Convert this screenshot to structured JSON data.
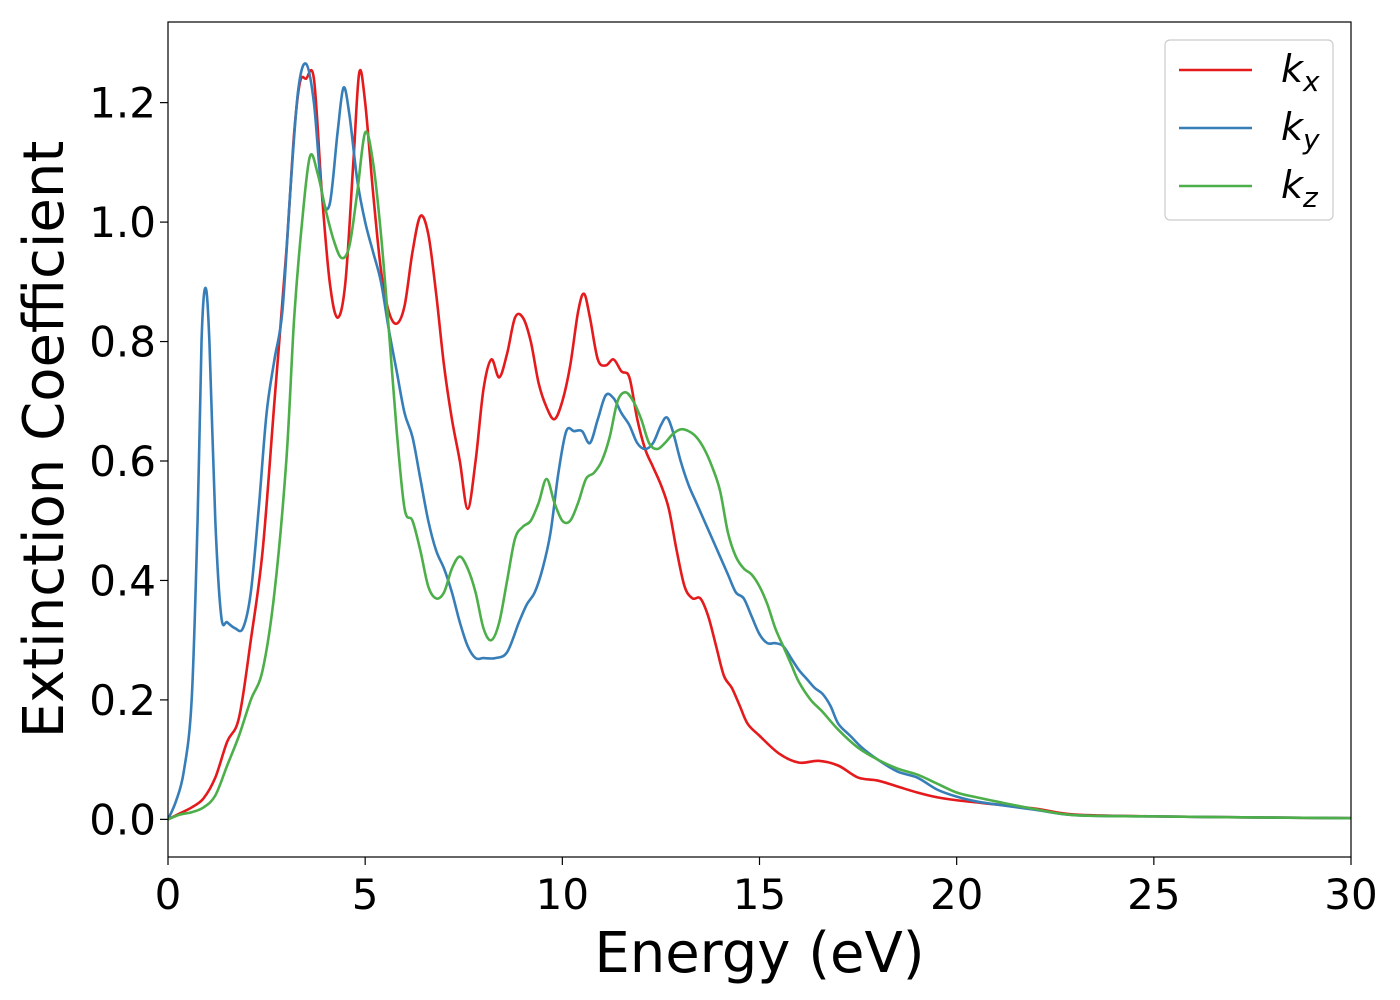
{
  "chart_data": {
    "type": "line",
    "xlabel": "Energy (eV)",
    "ylabel": "Extinction Coefficient",
    "xlim": [
      0,
      30
    ],
    "ylim": [
      -0.063,
      1.335
    ],
    "xticks": [
      0,
      5,
      10,
      15,
      20,
      25,
      30
    ],
    "xtick_labels": [
      "0",
      "5",
      "10",
      "15",
      "20",
      "25",
      "30"
    ],
    "yticks": [
      0.0,
      0.2,
      0.4,
      0.6,
      0.8,
      1.0,
      1.2
    ],
    "ytick_labels": [
      "0.0",
      "0.2",
      "0.4",
      "0.6",
      "0.8",
      "1.0",
      "1.2"
    ],
    "grid": false,
    "legend_position": "top-right",
    "series": [
      {
        "name": "k",
        "subscript": "x",
        "color": "#e41a1c",
        "points": [
          [
            0,
            0.0
          ],
          [
            0.3,
            0.01
          ],
          [
            0.6,
            0.02
          ],
          [
            0.9,
            0.035
          ],
          [
            1.2,
            0.07
          ],
          [
            1.5,
            0.13
          ],
          [
            1.8,
            0.17
          ],
          [
            2.1,
            0.3
          ],
          [
            2.4,
            0.45
          ],
          [
            2.7,
            0.7
          ],
          [
            3.0,
            0.95
          ],
          [
            3.2,
            1.15
          ],
          [
            3.35,
            1.235
          ],
          [
            3.5,
            1.24
          ],
          [
            3.7,
            1.24
          ],
          [
            3.9,
            1.05
          ],
          [
            4.1,
            0.9
          ],
          [
            4.3,
            0.84
          ],
          [
            4.5,
            0.9
          ],
          [
            4.7,
            1.1
          ],
          [
            4.85,
            1.25
          ],
          [
            5.0,
            1.2
          ],
          [
            5.2,
            1.05
          ],
          [
            5.4,
            0.92
          ],
          [
            5.6,
            0.85
          ],
          [
            5.8,
            0.83
          ],
          [
            6.0,
            0.86
          ],
          [
            6.2,
            0.95
          ],
          [
            6.4,
            1.01
          ],
          [
            6.6,
            0.98
          ],
          [
            6.8,
            0.88
          ],
          [
            7.0,
            0.76
          ],
          [
            7.2,
            0.67
          ],
          [
            7.4,
            0.6
          ],
          [
            7.6,
            0.52
          ],
          [
            7.8,
            0.6
          ],
          [
            8.0,
            0.72
          ],
          [
            8.2,
            0.77
          ],
          [
            8.4,
            0.74
          ],
          [
            8.6,
            0.78
          ],
          [
            8.8,
            0.84
          ],
          [
            9.0,
            0.84
          ],
          [
            9.2,
            0.8
          ],
          [
            9.4,
            0.73
          ],
          [
            9.6,
            0.69
          ],
          [
            9.8,
            0.67
          ],
          [
            10.0,
            0.7
          ],
          [
            10.2,
            0.76
          ],
          [
            10.4,
            0.85
          ],
          [
            10.55,
            0.88
          ],
          [
            10.7,
            0.84
          ],
          [
            10.9,
            0.77
          ],
          [
            11.1,
            0.76
          ],
          [
            11.3,
            0.77
          ],
          [
            11.5,
            0.75
          ],
          [
            11.7,
            0.74
          ],
          [
            11.9,
            0.67
          ],
          [
            12.1,
            0.62
          ],
          [
            12.3,
            0.59
          ],
          [
            12.5,
            0.56
          ],
          [
            12.7,
            0.52
          ],
          [
            12.9,
            0.45
          ],
          [
            13.1,
            0.39
          ],
          [
            13.3,
            0.37
          ],
          [
            13.5,
            0.37
          ],
          [
            13.7,
            0.34
          ],
          [
            13.9,
            0.29
          ],
          [
            14.1,
            0.24
          ],
          [
            14.3,
            0.22
          ],
          [
            14.5,
            0.19
          ],
          [
            14.7,
            0.16
          ],
          [
            15.0,
            0.14
          ],
          [
            15.5,
            0.11
          ],
          [
            16.0,
            0.095
          ],
          [
            16.5,
            0.098
          ],
          [
            17.0,
            0.09
          ],
          [
            17.5,
            0.07
          ],
          [
            18.0,
            0.065
          ],
          [
            18.5,
            0.055
          ],
          [
            19.0,
            0.045
          ],
          [
            19.5,
            0.037
          ],
          [
            20.0,
            0.032
          ],
          [
            21.0,
            0.025
          ],
          [
            22.0,
            0.018
          ],
          [
            23.0,
            0.008
          ],
          [
            25.0,
            0.005
          ],
          [
            28.0,
            0.003
          ],
          [
            30.0,
            0.002
          ]
        ]
      },
      {
        "name": "k",
        "subscript": "y",
        "color": "#377eb8",
        "points": [
          [
            0,
            0.0
          ],
          [
            0.2,
            0.03
          ],
          [
            0.4,
            0.08
          ],
          [
            0.6,
            0.2
          ],
          [
            0.75,
            0.5
          ],
          [
            0.85,
            0.8
          ],
          [
            0.95,
            0.89
          ],
          [
            1.05,
            0.8
          ],
          [
            1.2,
            0.5
          ],
          [
            1.35,
            0.34
          ],
          [
            1.5,
            0.33
          ],
          [
            1.7,
            0.32
          ],
          [
            1.9,
            0.32
          ],
          [
            2.1,
            0.38
          ],
          [
            2.3,
            0.52
          ],
          [
            2.5,
            0.68
          ],
          [
            2.7,
            0.77
          ],
          [
            2.9,
            0.85
          ],
          [
            3.1,
            1.05
          ],
          [
            3.3,
            1.22
          ],
          [
            3.5,
            1.265
          ],
          [
            3.7,
            1.2
          ],
          [
            3.9,
            1.05
          ],
          [
            4.1,
            1.03
          ],
          [
            4.3,
            1.15
          ],
          [
            4.45,
            1.225
          ],
          [
            4.6,
            1.18
          ],
          [
            4.8,
            1.07
          ],
          [
            5.0,
            1.0
          ],
          [
            5.2,
            0.95
          ],
          [
            5.4,
            0.9
          ],
          [
            5.6,
            0.82
          ],
          [
            5.8,
            0.75
          ],
          [
            6.0,
            0.68
          ],
          [
            6.2,
            0.64
          ],
          [
            6.4,
            0.57
          ],
          [
            6.6,
            0.5
          ],
          [
            6.8,
            0.45
          ],
          [
            7.0,
            0.42
          ],
          [
            7.2,
            0.38
          ],
          [
            7.4,
            0.33
          ],
          [
            7.6,
            0.29
          ],
          [
            7.8,
            0.27
          ],
          [
            8.0,
            0.27
          ],
          [
            8.3,
            0.27
          ],
          [
            8.6,
            0.28
          ],
          [
            8.9,
            0.33
          ],
          [
            9.1,
            0.36
          ],
          [
            9.3,
            0.38
          ],
          [
            9.5,
            0.42
          ],
          [
            9.7,
            0.48
          ],
          [
            9.9,
            0.58
          ],
          [
            10.1,
            0.65
          ],
          [
            10.3,
            0.65
          ],
          [
            10.5,
            0.65
          ],
          [
            10.7,
            0.63
          ],
          [
            10.9,
            0.67
          ],
          [
            11.1,
            0.71
          ],
          [
            11.3,
            0.705
          ],
          [
            11.5,
            0.68
          ],
          [
            11.7,
            0.66
          ],
          [
            11.9,
            0.63
          ],
          [
            12.1,
            0.62
          ],
          [
            12.3,
            0.63
          ],
          [
            12.5,
            0.66
          ],
          [
            12.65,
            0.673
          ],
          [
            12.8,
            0.65
          ],
          [
            13.0,
            0.6
          ],
          [
            13.2,
            0.56
          ],
          [
            13.4,
            0.53
          ],
          [
            13.6,
            0.5
          ],
          [
            13.8,
            0.47
          ],
          [
            14.0,
            0.44
          ],
          [
            14.2,
            0.41
          ],
          [
            14.4,
            0.38
          ],
          [
            14.6,
            0.37
          ],
          [
            14.8,
            0.34
          ],
          [
            15.0,
            0.31
          ],
          [
            15.2,
            0.295
          ],
          [
            15.4,
            0.295
          ],
          [
            15.6,
            0.29
          ],
          [
            15.8,
            0.27
          ],
          [
            16.0,
            0.25
          ],
          [
            16.2,
            0.235
          ],
          [
            16.4,
            0.22
          ],
          [
            16.6,
            0.21
          ],
          [
            16.8,
            0.19
          ],
          [
            17.0,
            0.16
          ],
          [
            17.3,
            0.14
          ],
          [
            17.6,
            0.12
          ],
          [
            18.0,
            0.1
          ],
          [
            18.5,
            0.08
          ],
          [
            19.0,
            0.07
          ],
          [
            19.5,
            0.05
          ],
          [
            20.0,
            0.038
          ],
          [
            20.5,
            0.03
          ],
          [
            21.0,
            0.025
          ],
          [
            22.0,
            0.016
          ],
          [
            23.0,
            0.007
          ],
          [
            25.0,
            0.005
          ],
          [
            28.0,
            0.003
          ],
          [
            30.0,
            0.002
          ]
        ]
      },
      {
        "name": "k",
        "subscript": "z",
        "color": "#4daf4a",
        "points": [
          [
            0,
            0.0
          ],
          [
            0.3,
            0.008
          ],
          [
            0.6,
            0.012
          ],
          [
            0.9,
            0.02
          ],
          [
            1.2,
            0.04
          ],
          [
            1.5,
            0.09
          ],
          [
            1.8,
            0.14
          ],
          [
            2.1,
            0.2
          ],
          [
            2.4,
            0.25
          ],
          [
            2.7,
            0.38
          ],
          [
            3.0,
            0.6
          ],
          [
            3.2,
            0.84
          ],
          [
            3.4,
            1.0
          ],
          [
            3.6,
            1.11
          ],
          [
            3.8,
            1.08
          ],
          [
            4.0,
            1.02
          ],
          [
            4.2,
            0.97
          ],
          [
            4.4,
            0.94
          ],
          [
            4.6,
            0.96
          ],
          [
            4.8,
            1.05
          ],
          [
            5.0,
            1.15
          ],
          [
            5.2,
            1.1
          ],
          [
            5.4,
            0.98
          ],
          [
            5.6,
            0.82
          ],
          [
            5.8,
            0.65
          ],
          [
            6.0,
            0.52
          ],
          [
            6.2,
            0.5
          ],
          [
            6.4,
            0.45
          ],
          [
            6.6,
            0.39
          ],
          [
            6.8,
            0.37
          ],
          [
            7.0,
            0.38
          ],
          [
            7.2,
            0.42
          ],
          [
            7.4,
            0.44
          ],
          [
            7.6,
            0.42
          ],
          [
            7.8,
            0.38
          ],
          [
            8.0,
            0.32
          ],
          [
            8.2,
            0.3
          ],
          [
            8.4,
            0.33
          ],
          [
            8.6,
            0.4
          ],
          [
            8.8,
            0.47
          ],
          [
            9.0,
            0.49
          ],
          [
            9.2,
            0.5
          ],
          [
            9.4,
            0.53
          ],
          [
            9.6,
            0.57
          ],
          [
            9.8,
            0.53
          ],
          [
            10.0,
            0.5
          ],
          [
            10.2,
            0.5
          ],
          [
            10.4,
            0.53
          ],
          [
            10.6,
            0.57
          ],
          [
            10.8,
            0.58
          ],
          [
            11.0,
            0.6
          ],
          [
            11.2,
            0.64
          ],
          [
            11.4,
            0.7
          ],
          [
            11.6,
            0.715
          ],
          [
            11.8,
            0.7
          ],
          [
            12.0,
            0.67
          ],
          [
            12.2,
            0.63
          ],
          [
            12.4,
            0.62
          ],
          [
            12.6,
            0.63
          ],
          [
            12.8,
            0.645
          ],
          [
            13.0,
            0.653
          ],
          [
            13.2,
            0.65
          ],
          [
            13.4,
            0.64
          ],
          [
            13.6,
            0.62
          ],
          [
            13.8,
            0.59
          ],
          [
            14.0,
            0.55
          ],
          [
            14.2,
            0.48
          ],
          [
            14.4,
            0.44
          ],
          [
            14.6,
            0.42
          ],
          [
            14.8,
            0.41
          ],
          [
            15.0,
            0.39
          ],
          [
            15.2,
            0.36
          ],
          [
            15.4,
            0.32
          ],
          [
            15.6,
            0.29
          ],
          [
            15.8,
            0.26
          ],
          [
            16.0,
            0.23
          ],
          [
            16.3,
            0.2
          ],
          [
            16.6,
            0.18
          ],
          [
            17.0,
            0.15
          ],
          [
            17.5,
            0.12
          ],
          [
            18.0,
            0.1
          ],
          [
            18.5,
            0.085
          ],
          [
            19.0,
            0.075
          ],
          [
            19.5,
            0.06
          ],
          [
            20.0,
            0.045
          ],
          [
            20.5,
            0.037
          ],
          [
            21.0,
            0.03
          ],
          [
            22.0,
            0.017
          ],
          [
            23.0,
            0.007
          ],
          [
            25.0,
            0.005
          ],
          [
            28.0,
            0.003
          ],
          [
            30.0,
            0.002
          ]
        ]
      }
    ]
  }
}
